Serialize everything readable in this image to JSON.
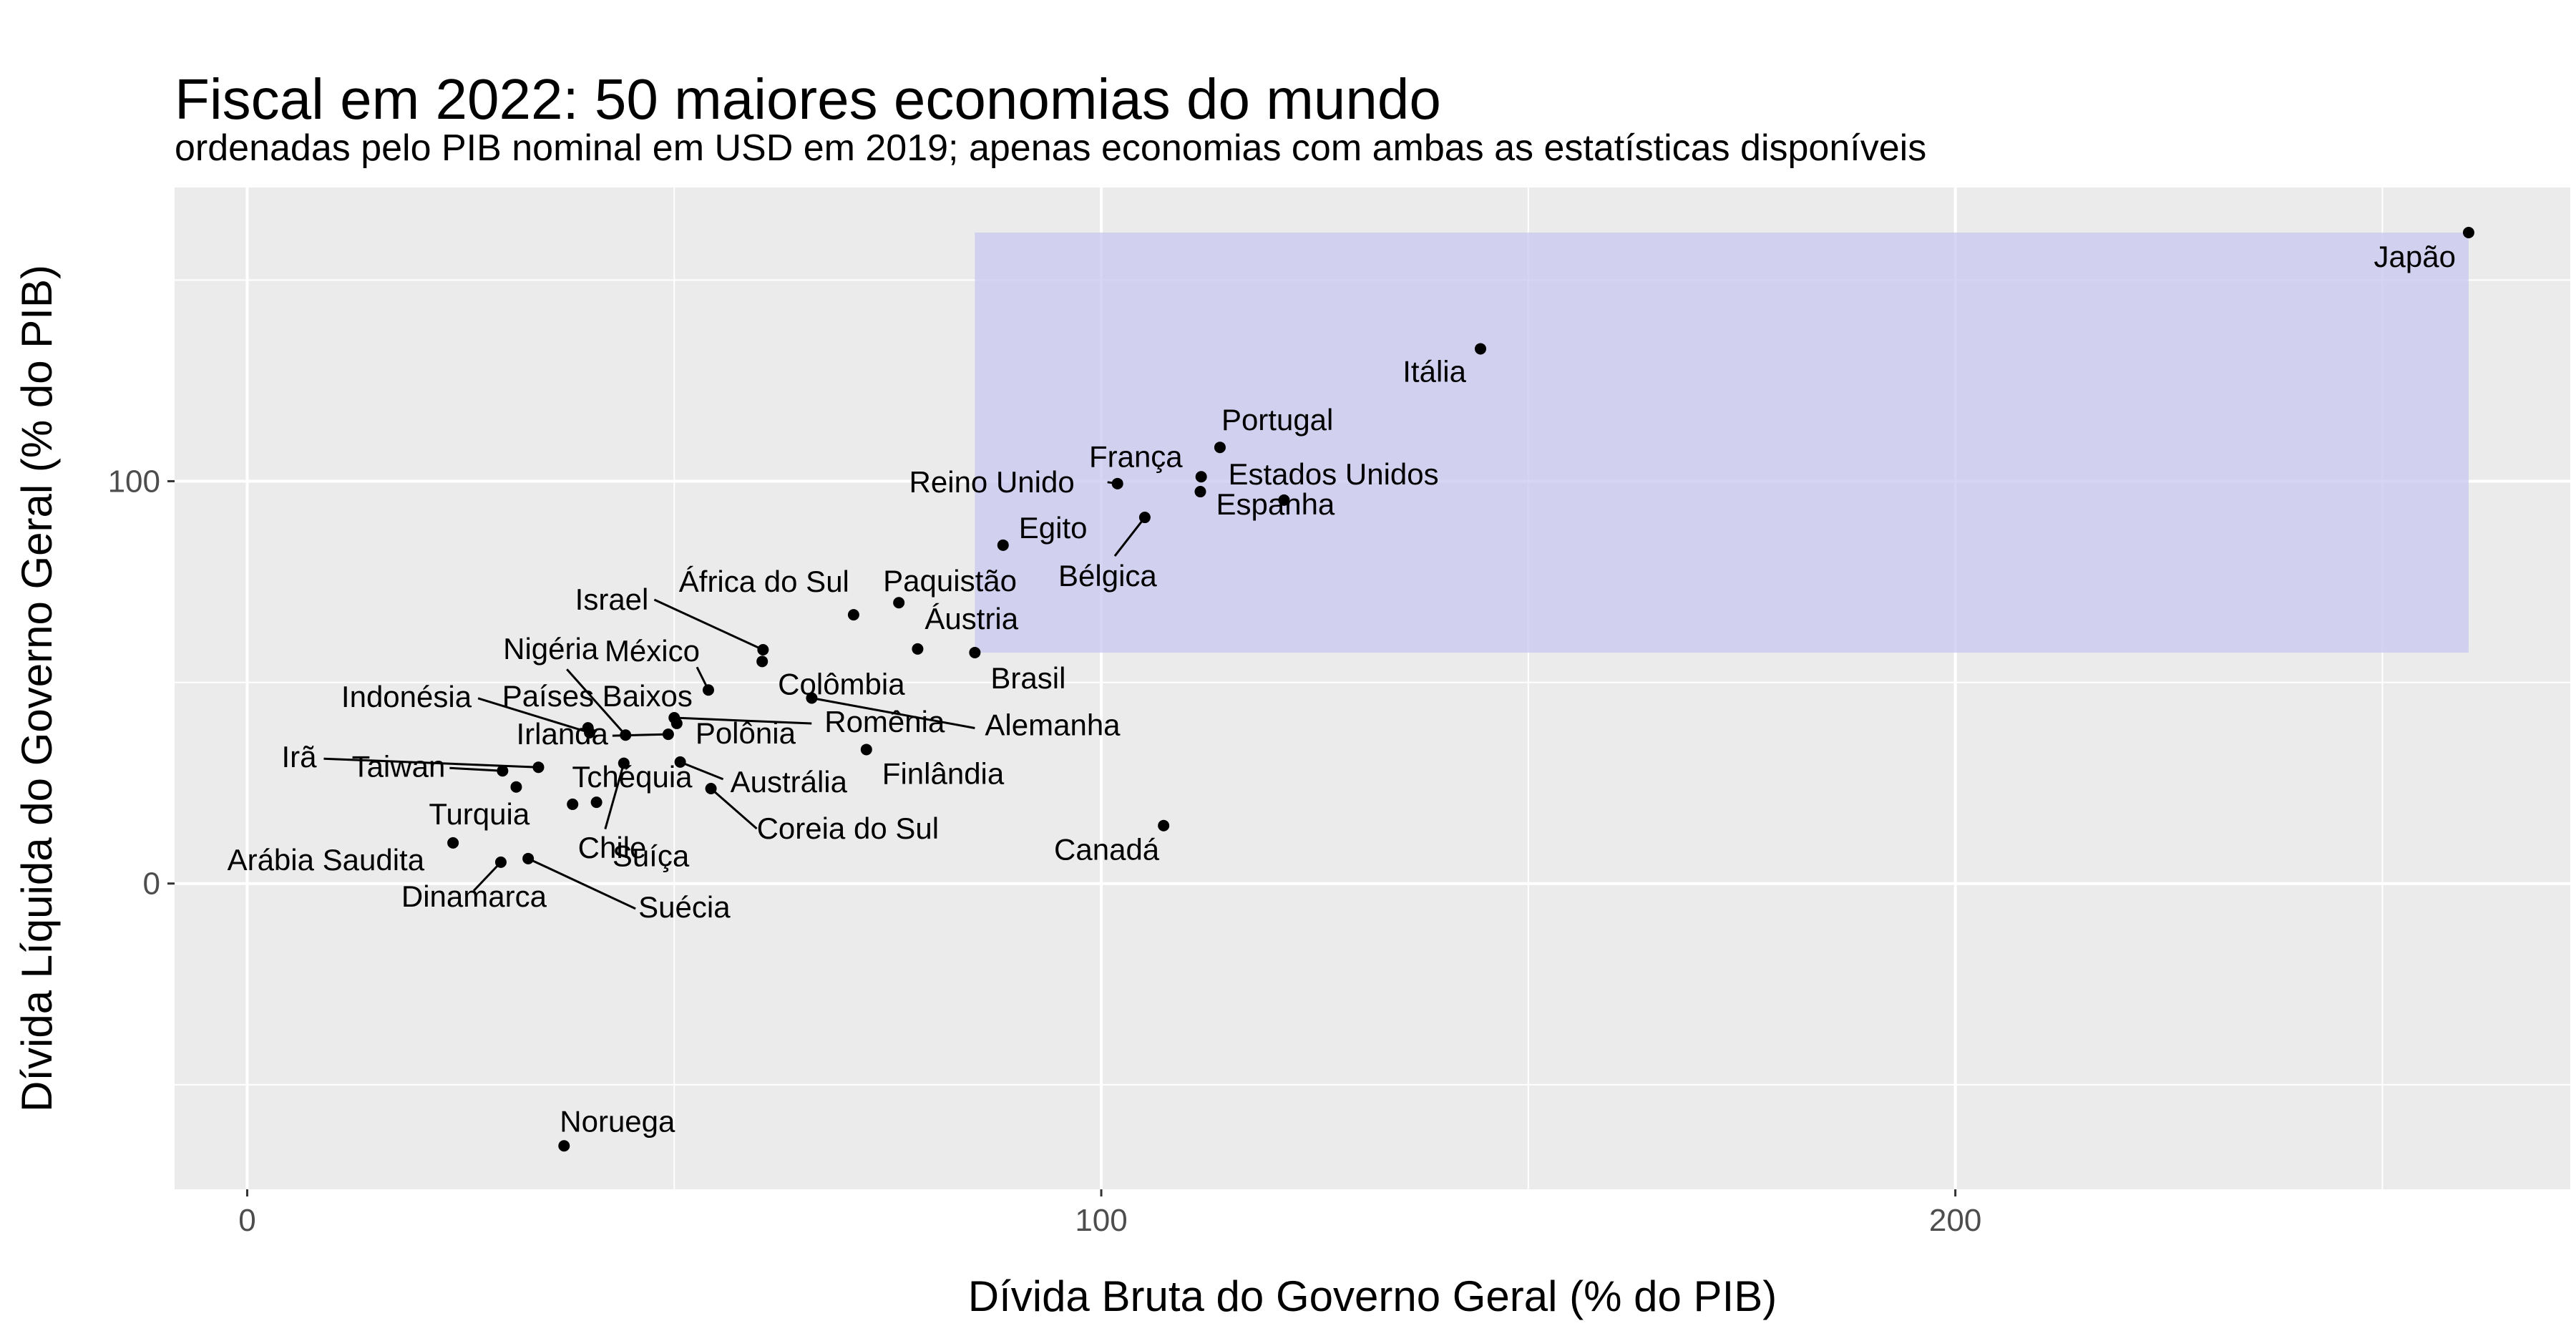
{
  "chart_data": {
    "type": "scatter",
    "title": "Fiscal em 2022: 50 maiores economias do mundo",
    "subtitle": "ordenadas pelo PIB nominal em USD em 2019; apenas economias com ambas as estatísticas disponíveis",
    "xlabel": "Dívida Bruta do Governo Geral (% do PIB)",
    "ylabel": "Dívida Líquida do Governo Geral (% do PIB)",
    "xlim": [
      -8.5,
      272
    ],
    "ylim": [
      -76,
      173
    ],
    "xticks": [
      0,
      100,
      200
    ],
    "yticks": [
      0,
      100
    ],
    "grid": true,
    "highlight_region": {
      "x": [
        85.2,
        260.1
      ],
      "y": [
        57.4,
        161.8
      ],
      "color": "#c8c8f0"
    },
    "colors": {
      "background": "#ebebeb",
      "grid": "#ffffff",
      "point": "#000000",
      "highlight": "#c8c8f0"
    },
    "points": [
      {
        "label": "Japão",
        "x": 260.1,
        "y": 161.8
      },
      {
        "label": "Itália",
        "x": 144.4,
        "y": 132.9
      },
      {
        "label": "Portugal",
        "x": 113.9,
        "y": 108.4
      },
      {
        "label": "França",
        "x": 111.7,
        "y": 101.1
      },
      {
        "label": "Estados Unidos",
        "x": 121.4,
        "y": 95.3
      },
      {
        "label": "Reino Unido",
        "x": 101.9,
        "y": 99.4
      },
      {
        "label": "Espanha",
        "x": 111.6,
        "y": 97.4
      },
      {
        "label": "Bélgica",
        "x": 105.1,
        "y": 91.0
      },
      {
        "label": "Egito",
        "x": 88.5,
        "y": 84.1
      },
      {
        "label": "Paquistão",
        "x": 76.3,
        "y": 69.8
      },
      {
        "label": "África do Sul",
        "x": 71.0,
        "y": 66.8
      },
      {
        "label": "Áustria",
        "x": 78.5,
        "y": 58.3
      },
      {
        "label": "Brasil",
        "x": 85.2,
        "y": 57.4
      },
      {
        "label": "Israel",
        "x": 60.4,
        "y": 58.1
      },
      {
        "label": "Colômbia",
        "x": 60.3,
        "y": 55.2
      },
      {
        "label": "México",
        "x": 54.0,
        "y": 48.1
      },
      {
        "label": "Alemanha",
        "x": 66.1,
        "y": 46.1
      },
      {
        "label": "Romênia",
        "x": 50.0,
        "y": 41.2
      },
      {
        "label": "Polônia",
        "x": 50.3,
        "y": 39.8
      },
      {
        "label": "Países Baixos",
        "x": 39.9,
        "y": 38.7
      },
      {
        "label": "Indonésia",
        "x": 40.1,
        "y": 37.5
      },
      {
        "label": "Nigéria",
        "x": 44.3,
        "y": 36.9
      },
      {
        "label": "Irlanda",
        "x": 49.3,
        "y": 37.1
      },
      {
        "label": "Finlândia",
        "x": 72.5,
        "y": 33.3
      },
      {
        "label": "Austrália",
        "x": 50.7,
        "y": 30.2
      },
      {
        "label": "Irã",
        "x": 34.1,
        "y": 28.9
      },
      {
        "label": "Taiwan",
        "x": 29.9,
        "y": 28.0
      },
      {
        "label": "Coreia do Sul",
        "x": 54.3,
        "y": 23.6
      },
      {
        "label": "Tchéquia",
        "x": 31.5,
        "y": 24.0
      },
      {
        "label": "Suíça",
        "x": 44.1,
        "y": 29.9
      },
      {
        "label": "Turquia",
        "x": 38.1,
        "y": 19.7
      },
      {
        "label": "Arábia Saudita",
        "x": 24.1,
        "y": 10.1
      },
      {
        "label": "Chile",
        "x": 40.9,
        "y": 20.2
      },
      {
        "label": "Canadá",
        "x": 107.3,
        "y": 14.4
      },
      {
        "label": "Dinamarca",
        "x": 29.7,
        "y": 5.3
      },
      {
        "label": "Suécia",
        "x": 32.9,
        "y": 6.2
      },
      {
        "label": "Noruega",
        "x": 37.1,
        "y": -65.2
      }
    ]
  }
}
